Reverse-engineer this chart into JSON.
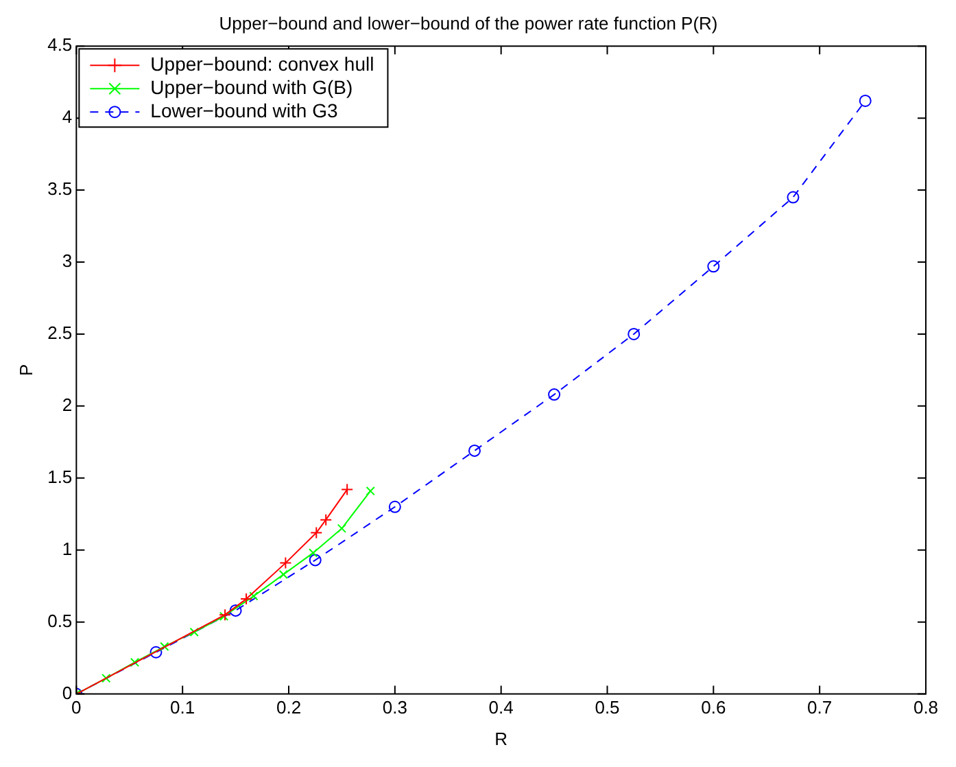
{
  "chart_data": {
    "type": "line",
    "title": "Upper−bound and lower−bound of the power rate function P(R)",
    "xlabel": "R",
    "ylabel": "P",
    "xlim": [
      0,
      0.8
    ],
    "xticks": [
      0,
      0.1,
      0.2,
      0.3,
      0.4,
      0.5,
      0.6,
      0.7,
      0.8
    ],
    "ylim": [
      0,
      4.5
    ],
    "yticks": [
      0,
      0.5,
      1,
      1.5,
      2,
      2.5,
      3,
      3.5,
      4,
      4.5
    ],
    "grid": false,
    "legend": "top left",
    "series": [
      {
        "name": "Upper−bound: convex hull",
        "color": "#ff0000",
        "marker": "cross",
        "line_style": "solid",
        "x": [
          0,
          0.14,
          0.16,
          0.197,
          0.226,
          0.235,
          0.255
        ],
        "values": [
          0,
          0.55,
          0.66,
          0.91,
          1.12,
          1.21,
          1.42
        ]
      },
      {
        "name": "Upper−bound with G(B)",
        "color": "#00ff00",
        "marker": "x",
        "line_style": "solid",
        "x": [
          0,
          0.028,
          0.055,
          0.083,
          0.111,
          0.139,
          0.167,
          0.195,
          0.223,
          0.25,
          0.277
        ],
        "values": [
          0,
          0.11,
          0.22,
          0.33,
          0.43,
          0.54,
          0.68,
          0.83,
          0.98,
          1.15,
          1.41
        ]
      },
      {
        "name": "Lower−bound with G3",
        "color": "#0000ff",
        "marker": "circle",
        "line_style": "dashed",
        "x": [
          0,
          0.075,
          0.15,
          0.225,
          0.3,
          0.375,
          0.45,
          0.525,
          0.6,
          0.675,
          0.743
        ],
        "values": [
          0,
          0.29,
          0.58,
          0.93,
          1.3,
          1.69,
          2.08,
          2.5,
          2.97,
          3.45,
          4.12
        ]
      }
    ]
  }
}
